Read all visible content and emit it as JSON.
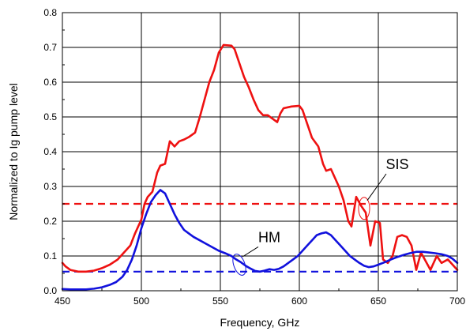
{
  "chart_data": {
    "type": "line",
    "xlabel": "Frequency, GHz",
    "ylabel": "Normalized to Ig pump level",
    "xlim": [
      450,
      700
    ],
    "ylim": [
      0.0,
      0.8
    ],
    "xticks": [
      450,
      500,
      550,
      600,
      650,
      700
    ],
    "yticks": [
      0.0,
      0.1,
      0.2,
      0.3,
      0.4,
      0.5,
      0.6,
      0.7,
      0.8
    ],
    "xtick_labels": [
      "450",
      "500",
      "550",
      "600",
      "650",
      "700"
    ],
    "ytick_labels": [
      "0.0",
      "0.1",
      "0.2",
      "0.3",
      "0.4",
      "0.5",
      "0.6",
      "0.7",
      "0.8"
    ],
    "grid": true,
    "series": [
      {
        "name": "SIS",
        "color": "#ee1111",
        "style": "solid",
        "points": [
          [
            450,
            0.08
          ],
          [
            452,
            0.07
          ],
          [
            455,
            0.06
          ],
          [
            460,
            0.055
          ],
          [
            465,
            0.055
          ],
          [
            470,
            0.058
          ],
          [
            475,
            0.065
          ],
          [
            480,
            0.075
          ],
          [
            485,
            0.09
          ],
          [
            490,
            0.115
          ],
          [
            493,
            0.13
          ],
          [
            496,
            0.165
          ],
          [
            500,
            0.205
          ],
          [
            502,
            0.25
          ],
          [
            504,
            0.27
          ],
          [
            507,
            0.285
          ],
          [
            510,
            0.34
          ],
          [
            512,
            0.36
          ],
          [
            515,
            0.365
          ],
          [
            518,
            0.43
          ],
          [
            521,
            0.415
          ],
          [
            524,
            0.43
          ],
          [
            527,
            0.435
          ],
          [
            530,
            0.442
          ],
          [
            534,
            0.455
          ],
          [
            537,
            0.5
          ],
          [
            540,
            0.55
          ],
          [
            543,
            0.6
          ],
          [
            546,
            0.635
          ],
          [
            549,
            0.685
          ],
          [
            552,
            0.707
          ],
          [
            557,
            0.705
          ],
          [
            559,
            0.695
          ],
          [
            562,
            0.655
          ],
          [
            565,
            0.615
          ],
          [
            568,
            0.585
          ],
          [
            571,
            0.55
          ],
          [
            574,
            0.52
          ],
          [
            577,
            0.505
          ],
          [
            580,
            0.505
          ],
          [
            583,
            0.495
          ],
          [
            586,
            0.485
          ],
          [
            588,
            0.51
          ],
          [
            590,
            0.525
          ],
          [
            595,
            0.53
          ],
          [
            600,
            0.532
          ],
          [
            602,
            0.52
          ],
          [
            605,
            0.48
          ],
          [
            608,
            0.44
          ],
          [
            612,
            0.415
          ],
          [
            615,
            0.365
          ],
          [
            617,
            0.345
          ],
          [
            620,
            0.35
          ],
          [
            622,
            0.33
          ],
          [
            625,
            0.3
          ],
          [
            628,
            0.26
          ],
          [
            631,
            0.2
          ],
          [
            633,
            0.185
          ],
          [
            636,
            0.27
          ],
          [
            639,
            0.245
          ],
          [
            642,
            0.225
          ],
          [
            645,
            0.13
          ],
          [
            648,
            0.2
          ],
          [
            651,
            0.195
          ],
          [
            653,
            0.09
          ],
          [
            656,
            0.08
          ],
          [
            659,
            0.1
          ],
          [
            662,
            0.155
          ],
          [
            665,
            0.16
          ],
          [
            668,
            0.155
          ],
          [
            671,
            0.13
          ],
          [
            674,
            0.06
          ],
          [
            677,
            0.11
          ],
          [
            680,
            0.085
          ],
          [
            683,
            0.06
          ],
          [
            687,
            0.1
          ],
          [
            690,
            0.08
          ],
          [
            694,
            0.09
          ],
          [
            697,
            0.075
          ],
          [
            700,
            0.06
          ]
        ]
      },
      {
        "name": "HM",
        "color": "#1111dd",
        "style": "solid",
        "points": [
          [
            450,
            0.005
          ],
          [
            455,
            0.004
          ],
          [
            460,
            0.004
          ],
          [
            465,
            0.004
          ],
          [
            470,
            0.006
          ],
          [
            475,
            0.01
          ],
          [
            480,
            0.017
          ],
          [
            484,
            0.025
          ],
          [
            488,
            0.04
          ],
          [
            491,
            0.06
          ],
          [
            494,
            0.09
          ],
          [
            497,
            0.13
          ],
          [
            500,
            0.18
          ],
          [
            503,
            0.22
          ],
          [
            506,
            0.255
          ],
          [
            509,
            0.275
          ],
          [
            512,
            0.29
          ],
          [
            515,
            0.28
          ],
          [
            518,
            0.25
          ],
          [
            521,
            0.22
          ],
          [
            524,
            0.195
          ],
          [
            527,
            0.175
          ],
          [
            530,
            0.165
          ],
          [
            533,
            0.155
          ],
          [
            537,
            0.145
          ],
          [
            541,
            0.135
          ],
          [
            545,
            0.125
          ],
          [
            549,
            0.115
          ],
          [
            553,
            0.108
          ],
          [
            557,
            0.1
          ],
          [
            560,
            0.09
          ],
          [
            563,
            0.082
          ],
          [
            566,
            0.072
          ],
          [
            569,
            0.064
          ],
          [
            572,
            0.057
          ],
          [
            575,
            0.055
          ],
          [
            578,
            0.058
          ],
          [
            581,
            0.062
          ],
          [
            584,
            0.06
          ],
          [
            587,
            0.063
          ],
          [
            590,
            0.07
          ],
          [
            593,
            0.08
          ],
          [
            596,
            0.09
          ],
          [
            599,
            0.1
          ],
          [
            602,
            0.115
          ],
          [
            605,
            0.13
          ],
          [
            608,
            0.145
          ],
          [
            611,
            0.16
          ],
          [
            614,
            0.165
          ],
          [
            617,
            0.168
          ],
          [
            620,
            0.16
          ],
          [
            623,
            0.145
          ],
          [
            626,
            0.13
          ],
          [
            629,
            0.115
          ],
          [
            632,
            0.1
          ],
          [
            635,
            0.09
          ],
          [
            638,
            0.08
          ],
          [
            641,
            0.072
          ],
          [
            644,
            0.068
          ],
          [
            647,
            0.07
          ],
          [
            650,
            0.075
          ],
          [
            654,
            0.082
          ],
          [
            658,
            0.09
          ],
          [
            662,
            0.097
          ],
          [
            666,
            0.103
          ],
          [
            670,
            0.108
          ],
          [
            674,
            0.112
          ],
          [
            678,
            0.112
          ],
          [
            682,
            0.11
          ],
          [
            686,
            0.108
          ],
          [
            690,
            0.105
          ],
          [
            694,
            0.1
          ],
          [
            697,
            0.092
          ],
          [
            700,
            0.08
          ]
        ]
      }
    ],
    "reference_lines": [
      {
        "series": "SIS",
        "y": 0.25,
        "color": "#ee1111",
        "style": "dashed"
      },
      {
        "series": "HM",
        "y": 0.055,
        "color": "#1111dd",
        "style": "dashed"
      }
    ],
    "annotations": [
      {
        "text": "SIS",
        "target_x": 641,
        "target_y": 0.237,
        "label_x": 662,
        "label_y": 0.35
      },
      {
        "text": "HM",
        "target_x": 562,
        "target_y": 0.075,
        "label_x": 581,
        "label_y": 0.14
      }
    ]
  }
}
